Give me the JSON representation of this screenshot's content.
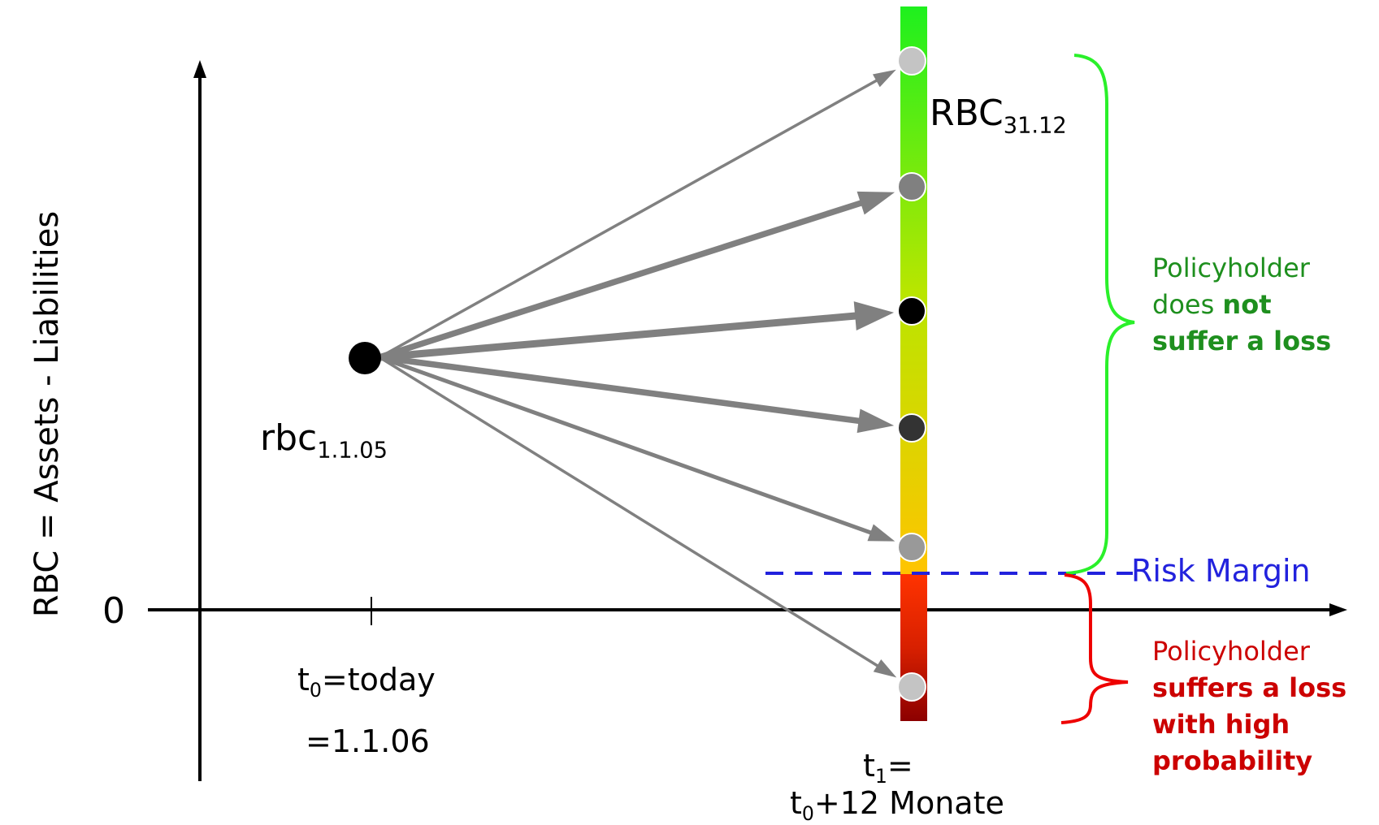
{
  "y_axis": {
    "label": "RBC = Assets - Liabilities",
    "zero_label": "0"
  },
  "start": {
    "label": "rbc",
    "sub": "1.1.05"
  },
  "t0": {
    "line1_main": "t",
    "line1_sub": "0",
    "line1_rest": "=today",
    "line2": "=1.1.06"
  },
  "t1": {
    "line1_main": "t",
    "line1_sub": "1",
    "line1_rest": "=",
    "line2_main": "t",
    "line2_sub": "0",
    "line2_rest": "+12 Monate"
  },
  "end_label": {
    "main": "RBC",
    "sub": "31.12"
  },
  "risk_margin": {
    "label": "Risk Margin",
    "color": "#2222dd"
  },
  "no_loss": {
    "line1": "Policyholder",
    "line2_plain": "does ",
    "line2_bold": "not",
    "line3_bold": "suffer a loss",
    "color": "#1e8f1e"
  },
  "loss": {
    "line1": "Policyholder",
    "line2_bold": "suffers a loss",
    "line3_bold": "with high",
    "line4_bold": "probability",
    "color": "#cc0000"
  },
  "outcomes": [
    {
      "name": "outcome-1",
      "fill": "#c4c4c4",
      "weight": "thin"
    },
    {
      "name": "outcome-2",
      "fill": "#808080",
      "weight": "thick"
    },
    {
      "name": "outcome-3",
      "fill": "#000000",
      "weight": "thickest"
    },
    {
      "name": "outcome-4",
      "fill": "#333333",
      "weight": "thick"
    },
    {
      "name": "outcome-5",
      "fill": "#999999",
      "weight": "medium"
    },
    {
      "name": "outcome-6",
      "fill": "#c4c4c4",
      "weight": "thin"
    }
  ]
}
